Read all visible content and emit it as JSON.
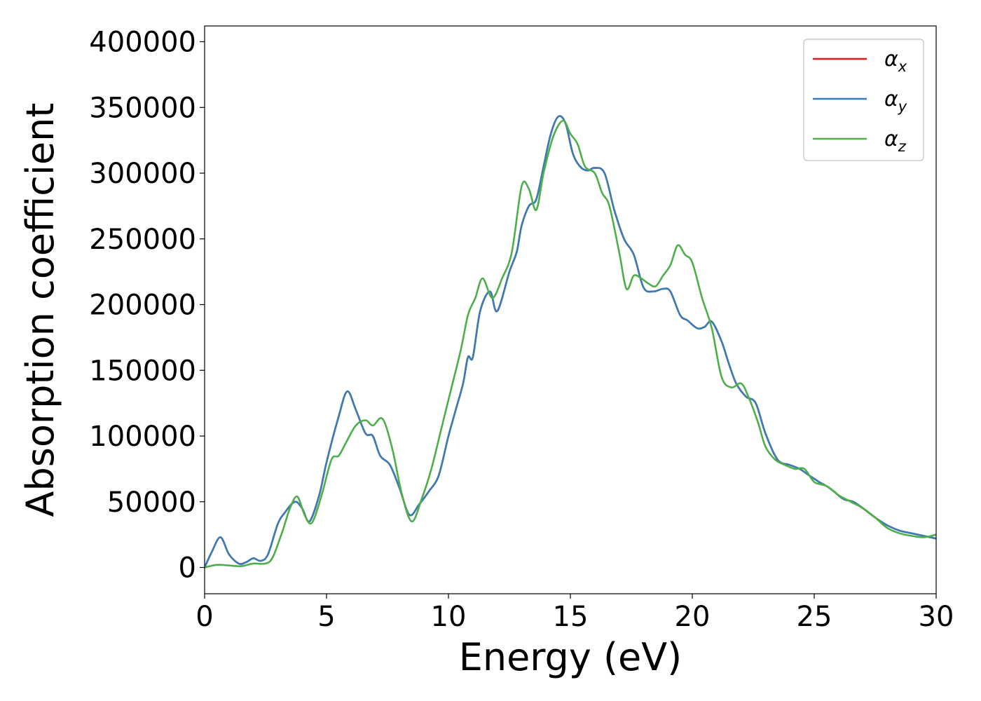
{
  "chart_data": {
    "type": "line",
    "xlabel": "Energy (eV)",
    "ylabel": "Absorption coefficient",
    "xlim": [
      0,
      30
    ],
    "ylim": [
      -20000,
      412000
    ],
    "xticks": [
      0,
      5,
      10,
      15,
      20,
      25,
      30
    ],
    "yticks": [
      0,
      50000,
      100000,
      150000,
      200000,
      250000,
      300000,
      350000,
      400000
    ],
    "grid": false,
    "legend_position": "top-right",
    "series": [
      {
        "name": "α",
        "subscript": "x",
        "color": "#e41a1c",
        "x": [
          0,
          0.3,
          0.65,
          1.0,
          1.4,
          1.7,
          2.0,
          2.3,
          2.6,
          3.0,
          3.3,
          3.7,
          4.0,
          4.3,
          4.7,
          5.0,
          5.5,
          5.85,
          6.2,
          6.6,
          6.9,
          7.2,
          7.6,
          8.0,
          8.4,
          8.8,
          9.2,
          9.6,
          10.0,
          10.3,
          10.6,
          10.8,
          11.0,
          11.3,
          11.7,
          12.0,
          12.5,
          12.8,
          13.0,
          13.3,
          13.6,
          13.9,
          14.2,
          14.5,
          14.8,
          15.1,
          15.4,
          15.7,
          16.0,
          16.4,
          16.8,
          17.2,
          17.6,
          18.0,
          18.4,
          18.8,
          19.1,
          19.5,
          19.8,
          20.2,
          20.5,
          20.8,
          21.2,
          21.5,
          21.8,
          22.2,
          22.6,
          23.0,
          23.5,
          24.0,
          24.4,
          24.8,
          25.2,
          25.5,
          25.8,
          26.2,
          26.6,
          27.0,
          27.5,
          28.0,
          28.5,
          29.0,
          29.5,
          30.0
        ],
        "y": [
          0,
          12000,
          23000,
          10000,
          3000,
          4000,
          7000,
          5000,
          10000,
          33000,
          42000,
          50000,
          45000,
          35000,
          55000,
          80000,
          115000,
          134000,
          120000,
          102000,
          100000,
          85000,
          78000,
          60000,
          40000,
          48000,
          58000,
          70000,
          100000,
          120000,
          140000,
          160000,
          160000,
          195000,
          210000,
          195000,
          225000,
          240000,
          260000,
          275000,
          280000,
          305000,
          330000,
          343000,
          338000,
          315000,
          305000,
          302000,
          304000,
          300000,
          272000,
          250000,
          238000,
          213000,
          210000,
          212000,
          210000,
          192000,
          188000,
          182000,
          183000,
          187000,
          172000,
          155000,
          140000,
          130000,
          125000,
          102000,
          82000,
          78000,
          75000,
          70000,
          65000,
          62000,
          58000,
          52000,
          50000,
          45000,
          38000,
          32000,
          28000,
          26000,
          24000,
          22000
        ]
      },
      {
        "name": "α",
        "subscript": "y",
        "color": "#377eb8",
        "x": [
          0,
          0.3,
          0.65,
          1.0,
          1.4,
          1.7,
          2.0,
          2.3,
          2.6,
          3.0,
          3.3,
          3.7,
          4.0,
          4.3,
          4.7,
          5.0,
          5.5,
          5.85,
          6.2,
          6.6,
          6.9,
          7.2,
          7.6,
          8.0,
          8.4,
          8.8,
          9.2,
          9.6,
          10.0,
          10.3,
          10.6,
          10.8,
          11.0,
          11.3,
          11.7,
          12.0,
          12.5,
          12.8,
          13.0,
          13.3,
          13.6,
          13.9,
          14.2,
          14.5,
          14.8,
          15.1,
          15.4,
          15.7,
          16.0,
          16.4,
          16.8,
          17.2,
          17.6,
          18.0,
          18.4,
          18.8,
          19.1,
          19.5,
          19.8,
          20.2,
          20.5,
          20.8,
          21.2,
          21.5,
          21.8,
          22.2,
          22.6,
          23.0,
          23.5,
          24.0,
          24.4,
          24.8,
          25.2,
          25.5,
          25.8,
          26.2,
          26.6,
          27.0,
          27.5,
          28.0,
          28.5,
          29.0,
          29.5,
          30.0
        ],
        "y": [
          0,
          12000,
          23000,
          10000,
          3000,
          4000,
          7000,
          5000,
          10000,
          33000,
          42000,
          50000,
          45000,
          35000,
          55000,
          80000,
          115000,
          134000,
          120000,
          102000,
          100000,
          85000,
          78000,
          60000,
          40000,
          48000,
          58000,
          70000,
          100000,
          120000,
          140000,
          160000,
          160000,
          195000,
          210000,
          195000,
          225000,
          240000,
          260000,
          275000,
          280000,
          305000,
          330000,
          343000,
          338000,
          315000,
          305000,
          302000,
          304000,
          300000,
          272000,
          250000,
          238000,
          213000,
          210000,
          212000,
          210000,
          192000,
          188000,
          182000,
          183000,
          187000,
          172000,
          155000,
          140000,
          130000,
          125000,
          102000,
          82000,
          78000,
          75000,
          70000,
          65000,
          62000,
          58000,
          52000,
          50000,
          45000,
          38000,
          32000,
          28000,
          26000,
          24000,
          22000
        ]
      },
      {
        "name": "α",
        "subscript": "z",
        "color": "#4daf4a",
        "x": [
          0,
          0.5,
          1.0,
          1.5,
          2.0,
          2.5,
          2.8,
          3.2,
          3.5,
          3.8,
          4.1,
          4.4,
          4.8,
          5.2,
          5.5,
          5.8,
          6.2,
          6.6,
          6.9,
          7.3,
          7.7,
          8.1,
          8.5,
          8.9,
          9.3,
          9.7,
          10.1,
          10.5,
          10.8,
          11.1,
          11.4,
          11.8,
          12.2,
          12.6,
          13.0,
          13.3,
          13.6,
          13.9,
          14.3,
          14.7,
          15.0,
          15.3,
          15.6,
          16.0,
          16.3,
          16.6,
          17.0,
          17.3,
          17.6,
          17.9,
          18.2,
          18.5,
          18.8,
          19.1,
          19.4,
          19.7,
          20.0,
          20.4,
          20.8,
          21.2,
          21.6,
          22.0,
          22.3,
          22.7,
          23.0,
          23.4,
          23.8,
          24.2,
          24.6,
          25.0,
          25.5,
          26.0,
          26.5,
          27.0,
          27.5,
          28.0,
          28.5,
          29.0,
          29.5,
          30.0
        ],
        "y": [
          0,
          2000,
          1500,
          1000,
          3000,
          3000,
          8000,
          28000,
          45000,
          54000,
          40000,
          34000,
          55000,
          82000,
          85000,
          95000,
          108000,
          112000,
          108000,
          113000,
          90000,
          55000,
          35000,
          52000,
          75000,
          105000,
          135000,
          165000,
          192000,
          205000,
          220000,
          205000,
          220000,
          240000,
          290000,
          288000,
          272000,
          300000,
          328000,
          340000,
          330000,
          322000,
          305000,
          300000,
          285000,
          275000,
          240000,
          212000,
          222000,
          220000,
          216000,
          214000,
          222000,
          230000,
          245000,
          238000,
          232000,
          205000,
          182000,
          145000,
          137000,
          140000,
          130000,
          110000,
          92000,
          82000,
          78000,
          75000,
          75000,
          65000,
          62000,
          55000,
          50000,
          45000,
          38000,
          30000,
          26000,
          24000,
          23000,
          25000
        ]
      }
    ]
  }
}
